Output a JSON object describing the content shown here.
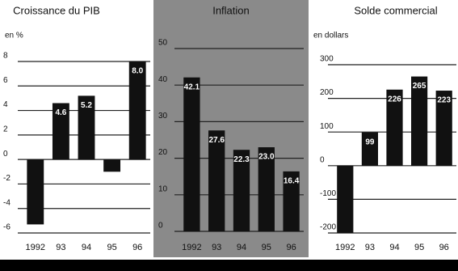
{
  "chart_data": [
    {
      "type": "bar",
      "title": "Croissance du PIB",
      "y_label": "en %",
      "categories": [
        "1992",
        "93",
        "94",
        "95",
        "96"
      ],
      "values": [
        -5.3,
        4.6,
        5.2,
        -1,
        8.0
      ],
      "value_labels": [
        null,
        "4.6",
        "5.2",
        null,
        "8.0"
      ],
      "color": "#111",
      "ylim": [
        -6,
        8
      ],
      "yticks": [
        -6,
        -4,
        -2,
        0,
        2,
        4,
        6,
        8
      ],
      "grid": true
    },
    {
      "type": "bar",
      "title": "Inflation",
      "categories": [
        "1992",
        "93",
        "94",
        "95",
        "96"
      ],
      "values": [
        42.1,
        27.6,
        22.3,
        23.0,
        16.4
      ],
      "value_labels": [
        "42.1",
        "27.6",
        "22.3",
        "23.0",
        "16.4"
      ],
      "color": "#111",
      "ylim": [
        0,
        50
      ],
      "yticks": [
        0,
        10,
        20,
        30,
        40,
        50
      ],
      "grid": true
    },
    {
      "type": "bar",
      "title": "Solde commercial",
      "y_label": "en dollars",
      "categories": [
        "1992",
        "93",
        "94",
        "95",
        "96"
      ],
      "values": [
        -200,
        99,
        226,
        265,
        223
      ],
      "value_labels": [
        null,
        "99",
        "226",
        "265",
        "223"
      ],
      "color": "#111",
      "ylim": [
        -200,
        300
      ],
      "yticks": [
        -200,
        -100,
        0,
        100,
        200,
        300
      ],
      "grid": true
    }
  ]
}
